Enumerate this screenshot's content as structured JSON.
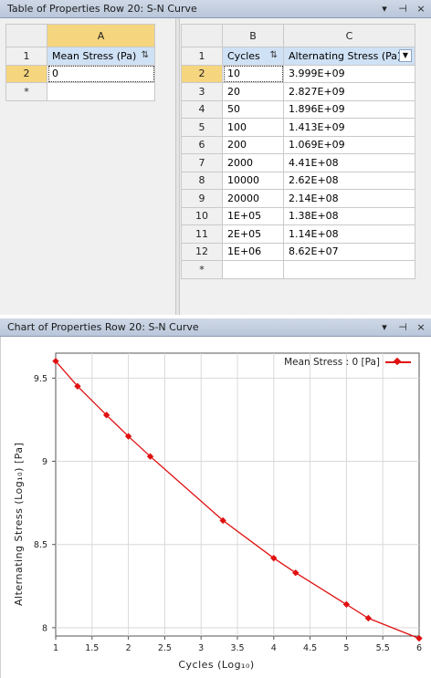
{
  "top_panel": {
    "title": "Table of Properties Row 20: S-N Curve",
    "buttons": [
      "▾",
      "⊣",
      "×"
    ]
  },
  "left_table": {
    "col_letter": "A",
    "header_row_num": "1",
    "header": "Mean Stress (Pa)",
    "rows": [
      {
        "num": "2",
        "value": "0"
      },
      {
        "num": "*",
        "value": ""
      }
    ]
  },
  "right_table": {
    "col_letters": [
      "B",
      "C"
    ],
    "header_row_num": "1",
    "headers": [
      "Cycles",
      "Alternating Stress (Pa)"
    ],
    "rows": [
      {
        "num": "2",
        "cycles": "10",
        "stress": "3.999E+09"
      },
      {
        "num": "3",
        "cycles": "20",
        "stress": "2.827E+09"
      },
      {
        "num": "4",
        "cycles": "50",
        "stress": "1.896E+09"
      },
      {
        "num": "5",
        "cycles": "100",
        "stress": "1.413E+09"
      },
      {
        "num": "6",
        "cycles": "200",
        "stress": "1.069E+09"
      },
      {
        "num": "7",
        "cycles": "2000",
        "stress": "4.41E+08"
      },
      {
        "num": "8",
        "cycles": "10000",
        "stress": "2.62E+08"
      },
      {
        "num": "9",
        "cycles": "20000",
        "stress": "2.14E+08"
      },
      {
        "num": "10",
        "cycles": "1E+05",
        "stress": "1.38E+08"
      },
      {
        "num": "11",
        "cycles": "2E+05",
        "stress": "1.14E+08"
      },
      {
        "num": "12",
        "cycles": "1E+06",
        "stress": "8.62E+07"
      },
      {
        "num": "*",
        "cycles": "",
        "stress": ""
      }
    ]
  },
  "bottom_panel": {
    "title": "Chart of Properties Row 20: S-N Curve",
    "buttons": [
      "▾",
      "⊣",
      "×"
    ]
  },
  "chart_data": {
    "type": "line",
    "legend": "Mean Stress : 0 [Pa]",
    "legend_position": "top-right",
    "xlabel": "Cycles  (Log₁₀)",
    "ylabel": "Alternating Stress  (Log₁₀)  [Pa]",
    "xlim": [
      1,
      6
    ],
    "ylim": [
      7.95,
      9.65
    ],
    "x_ticks": [
      "1",
      "1.5",
      "2",
      "2.5",
      "3",
      "3.5",
      "4",
      "4.5",
      "5",
      "5.5",
      "6"
    ],
    "y_ticks": [
      "8",
      "8.5",
      "9",
      "9.5"
    ],
    "grid": true,
    "color": "#e01010",
    "x": [
      1,
      1.301,
      1.699,
      2,
      2.301,
      3.301,
      4,
      4.301,
      5,
      5.301,
      6
    ],
    "y": [
      9.602,
      9.451,
      9.278,
      9.15,
      9.029,
      8.644,
      8.418,
      8.33,
      8.14,
      8.057,
      7.936
    ]
  }
}
